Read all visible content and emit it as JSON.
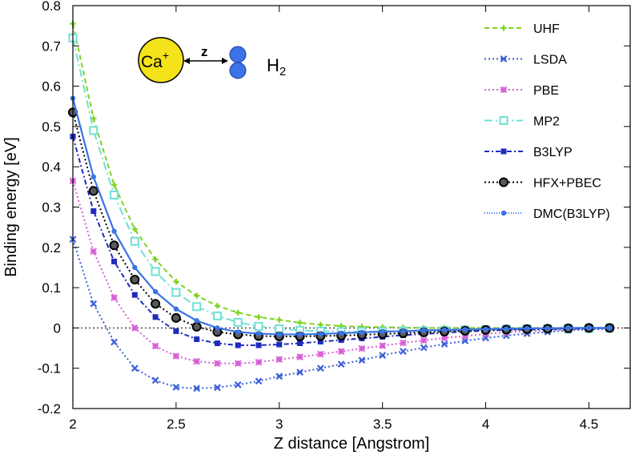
{
  "chart_data": {
    "type": "line",
    "title": "",
    "xlabel": "Z distance [Angstrom]",
    "ylabel": "Binding energy [eV]",
    "xlim": [
      2,
      4.7
    ],
    "ylim": [
      -0.2,
      0.8
    ],
    "xticks": [
      2,
      2.5,
      3,
      3.5,
      4,
      4.5
    ],
    "xtick_labels": [
      "2",
      "2.5",
      "3",
      "3.5",
      "4",
      "4.5"
    ],
    "yticks": [
      -0.2,
      -0.1,
      0,
      0.1,
      0.2,
      0.3,
      0.4,
      0.5,
      0.6,
      0.7,
      0.8
    ],
    "ytick_labels": [
      "-0.2",
      "-0.1",
      "0",
      "0.1",
      "0.2",
      "0.3",
      "0.4",
      "0.5",
      "0.6",
      "0.7",
      "0.8"
    ],
    "zero_line": true,
    "legend_position": "top-right",
    "inset": {
      "ion_label": "Ca",
      "ion_charge": "+",
      "arrow_label": "z",
      "molecule_label": "H",
      "molecule_subscript": "2"
    },
    "x": [
      2.0,
      2.1,
      2.2,
      2.3,
      2.4,
      2.5,
      2.6,
      2.7,
      2.8,
      2.9,
      3.0,
      3.1,
      3.2,
      3.3,
      3.4,
      3.5,
      3.6,
      3.7,
      3.8,
      3.9,
      4.0,
      4.1,
      4.2,
      4.3,
      4.4,
      4.5,
      4.6
    ],
    "series": [
      {
        "name": "UHF",
        "color": "#7ed321",
        "marker": "plus",
        "dash": "6,4",
        "values": [
          0.755,
          0.52,
          0.355,
          0.245,
          0.17,
          0.115,
          0.08,
          0.055,
          0.038,
          0.027,
          0.02,
          0.013,
          0.008,
          0.005,
          0.003,
          0.002,
          0.001,
          0.0,
          0.0,
          0.0,
          0.0,
          0.0,
          0.0,
          0.0,
          0.0,
          0.0,
          0.0
        ]
      },
      {
        "name": "LSDA",
        "color": "#3a5fd9",
        "marker": "cross",
        "dash": "2,3",
        "values": [
          0.22,
          0.06,
          -0.035,
          -0.1,
          -0.13,
          -0.147,
          -0.15,
          -0.148,
          -0.141,
          -0.132,
          -0.12,
          -0.11,
          -0.1,
          -0.09,
          -0.08,
          -0.068,
          -0.058,
          -0.049,
          -0.04,
          -0.032,
          -0.025,
          -0.019,
          -0.014,
          -0.01,
          -0.006,
          -0.004,
          -0.002
        ]
      },
      {
        "name": "PBE",
        "color": "#d75fd7",
        "marker": "square",
        "dash": "2,3",
        "values": [
          0.365,
          0.19,
          0.075,
          0.0,
          -0.045,
          -0.07,
          -0.083,
          -0.088,
          -0.088,
          -0.085,
          -0.078,
          -0.072,
          -0.065,
          -0.058,
          -0.051,
          -0.044,
          -0.037,
          -0.031,
          -0.025,
          -0.02,
          -0.015,
          -0.011,
          -0.008,
          -0.006,
          -0.004,
          -0.002,
          -0.001
        ]
      },
      {
        "name": "MP2",
        "color": "#6fe0d6",
        "marker": "open-square",
        "dash": "10,4,2,4",
        "values": [
          0.72,
          0.49,
          0.33,
          0.215,
          0.14,
          0.088,
          0.053,
          0.03,
          0.014,
          0.004,
          -0.002,
          -0.006,
          -0.008,
          -0.009,
          -0.009,
          -0.009,
          -0.008,
          -0.007,
          -0.006,
          -0.005,
          -0.004,
          -0.003,
          -0.002,
          -0.002,
          -0.001,
          -0.001,
          0.0
        ]
      },
      {
        "name": "B3LYP",
        "color": "#1f2bbd",
        "marker": "filled-square",
        "dash": "6,3,2,3",
        "values": [
          0.475,
          0.29,
          0.165,
          0.082,
          0.027,
          -0.008,
          -0.028,
          -0.038,
          -0.043,
          -0.043,
          -0.041,
          -0.038,
          -0.034,
          -0.03,
          -0.026,
          -0.022,
          -0.018,
          -0.015,
          -0.012,
          -0.009,
          -0.007,
          -0.005,
          -0.004,
          -0.003,
          -0.002,
          -0.001,
          0.0
        ]
      },
      {
        "name": "HFX+PBEC",
        "color": "#000000",
        "marker": "open-circle",
        "dash": "2,3",
        "values": [
          0.535,
          0.34,
          0.205,
          0.12,
          0.06,
          0.025,
          0.003,
          -0.01,
          -0.016,
          -0.02,
          -0.021,
          -0.021,
          -0.02,
          -0.019,
          -0.017,
          -0.015,
          -0.013,
          -0.011,
          -0.009,
          -0.007,
          -0.005,
          -0.004,
          -0.003,
          -0.002,
          -0.001,
          0.0,
          0.0
        ]
      },
      {
        "name": "DMC(B3LYP)",
        "color": "#3b73e6",
        "marker": "filled-circle",
        "dash": "1,2",
        "values": [
          0.57,
          0.375,
          0.24,
          0.15,
          0.09,
          0.047,
          0.018,
          0.0,
          -0.01,
          -0.014,
          -0.016,
          -0.016,
          -0.015,
          -0.013,
          -0.011,
          -0.009,
          -0.008,
          -0.006,
          -0.005,
          -0.004,
          -0.003,
          -0.002,
          -0.001,
          -0.001,
          0.0,
          0.0,
          0.0
        ]
      }
    ]
  }
}
